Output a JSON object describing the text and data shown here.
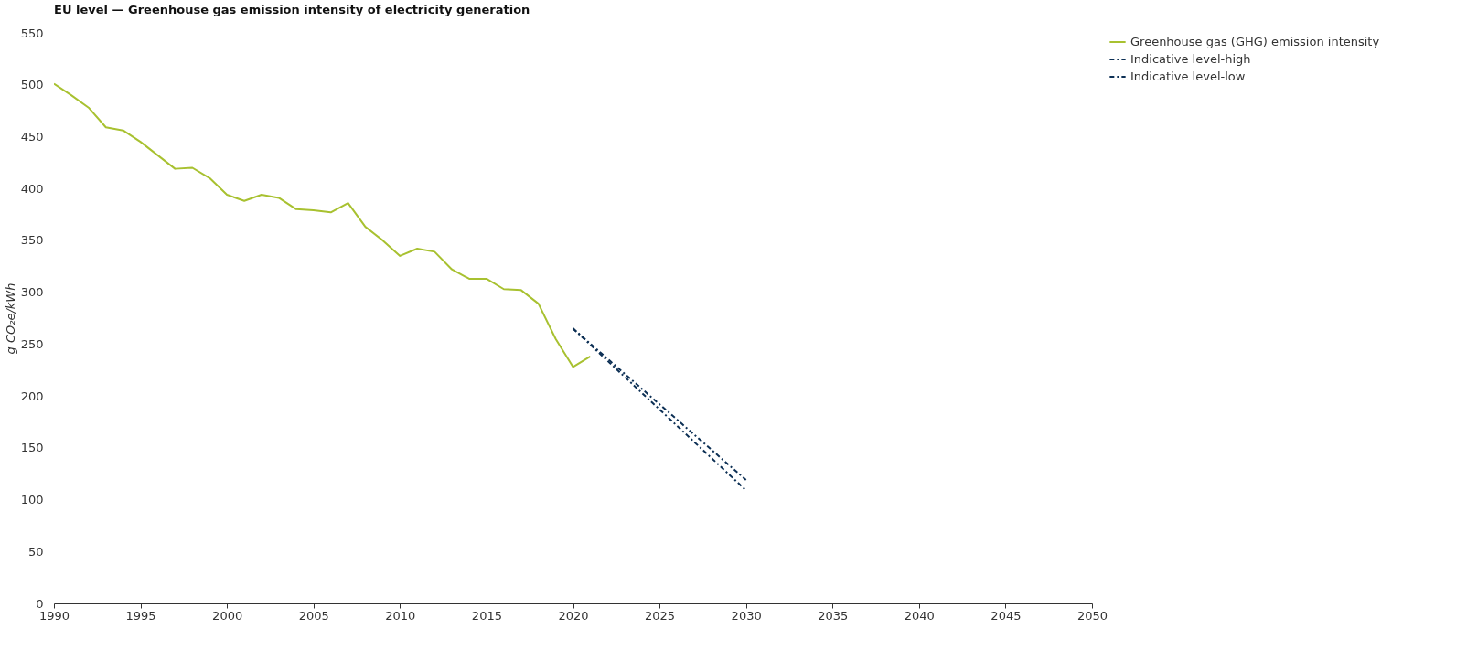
{
  "chart_data": {
    "type": "line",
    "title": "EU level — Greenhouse gas emission intensity of electricity generation",
    "ylabel": "g CO₂e/kWh",
    "xlim": [
      1990,
      2050
    ],
    "xticks": [
      1990,
      1995,
      2000,
      2005,
      2010,
      2015,
      2020,
      2025,
      2030,
      2035,
      2040,
      2045,
      2050
    ],
    "ylim": [
      0,
      550
    ],
    "yticks": [
      0,
      50,
      100,
      150,
      200,
      250,
      300,
      350,
      400,
      450,
      500,
      550
    ],
    "grid": false,
    "legend": "top right",
    "series": [
      {
        "name": "Greenhouse gas (GHG) emission intensity",
        "color": "#a8c130",
        "line_style": "solid",
        "x": [
          1990,
          1991,
          1992,
          1993,
          1994,
          1995,
          1996,
          1997,
          1998,
          1999,
          2000,
          2001,
          2002,
          2003,
          2004,
          2005,
          2006,
          2007,
          2008,
          2009,
          2010,
          2011,
          2012,
          2013,
          2014,
          2015,
          2016,
          2017,
          2018,
          2019,
          2020,
          2021
        ],
        "values": [
          501,
          490,
          478,
          459,
          456,
          445,
          432,
          419,
          420,
          410,
          394,
          388,
          394,
          391,
          380,
          379,
          377,
          386,
          363,
          350,
          335,
          342,
          339,
          322,
          313,
          313,
          303,
          302,
          289,
          255,
          228,
          238
        ]
      },
      {
        "name": "Indicative level-high",
        "color": "#0d3055",
        "line_style": "dashed",
        "x": [
          2020,
          2030
        ],
        "values": [
          265,
          119
        ]
      },
      {
        "name": "Indicative level-low",
        "color": "#0d3055",
        "line_style": "dashed",
        "x": [
          2020,
          2030
        ],
        "values": [
          265,
          109
        ]
      }
    ]
  }
}
